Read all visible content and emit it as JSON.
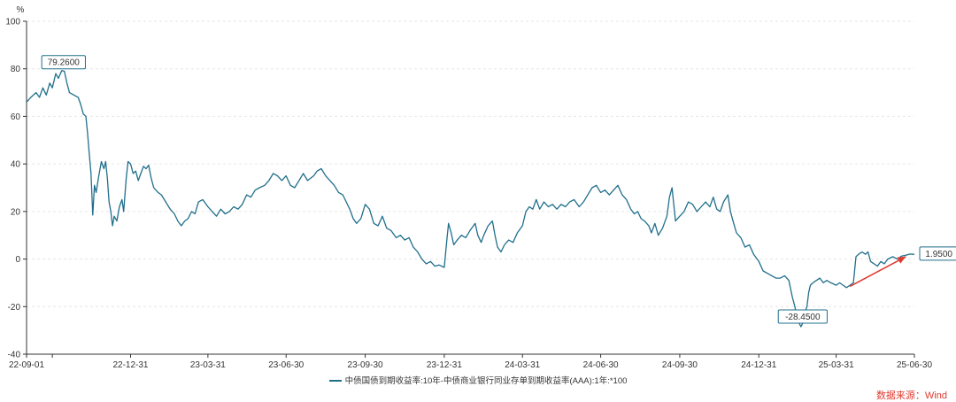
{
  "chart_data": {
    "type": "line",
    "unit": "%",
    "ylim": [
      -40,
      100
    ],
    "yticks": [
      -40,
      -20,
      0,
      20,
      40,
      60,
      80,
      100
    ],
    "x_range": [
      "2022-09-01",
      "2025-06-30"
    ],
    "xtick_labels": [
      {
        "date": "2022-09-01",
        "label": "22-09-01"
      },
      {
        "date": "2022-12-31",
        "label": "22-12-31"
      },
      {
        "date": "2023-03-31",
        "label": "23-03-31"
      },
      {
        "date": "2023-06-30",
        "label": "23-06-30"
      },
      {
        "date": "2023-09-30",
        "label": "23-09-30"
      },
      {
        "date": "2023-12-31",
        "label": "23-12-31"
      },
      {
        "date": "2024-03-31",
        "label": "24-03-31"
      },
      {
        "date": "2024-06-30",
        "label": "24-06-30"
      },
      {
        "date": "2024-09-30",
        "label": "24-09-30"
      },
      {
        "date": "2024-12-31",
        "label": "24-12-31"
      },
      {
        "date": "2025-03-31",
        "label": "25-03-31"
      },
      {
        "date": "2025-06-30",
        "label": "25-06-30"
      }
    ],
    "grid": "horizontal-dashed",
    "legend_position": "bottom-center",
    "series": [
      {
        "name": "中债国债到期收益率:10年-中债商业银行同业存单到期收益率(AAA):1年:*100",
        "color": "#1f6f8b",
        "points": [
          [
            "2022-09-01",
            66
          ],
          [
            "2022-09-06",
            68
          ],
          [
            "2022-09-12",
            70
          ],
          [
            "2022-09-16",
            68
          ],
          [
            "2022-09-20",
            72
          ],
          [
            "2022-09-24",
            69
          ],
          [
            "2022-09-28",
            74
          ],
          [
            "2022-10-01",
            72
          ],
          [
            "2022-10-05",
            78
          ],
          [
            "2022-10-08",
            76
          ],
          [
            "2022-10-12",
            79.26
          ],
          [
            "2022-10-15",
            79
          ],
          [
            "2022-10-18",
            74
          ],
          [
            "2022-10-21",
            70
          ],
          [
            "2022-10-26",
            69
          ],
          [
            "2022-10-31",
            68
          ],
          [
            "2022-11-03",
            65
          ],
          [
            "2022-11-06",
            61
          ],
          [
            "2022-11-09",
            60
          ],
          [
            "2022-11-11",
            53
          ],
          [
            "2022-11-13",
            44
          ],
          [
            "2022-11-15",
            36
          ],
          [
            "2022-11-17",
            18.5
          ],
          [
            "2022-11-19",
            31
          ],
          [
            "2022-11-21",
            28
          ],
          [
            "2022-11-24",
            35
          ],
          [
            "2022-11-27",
            41
          ],
          [
            "2022-11-30",
            38
          ],
          [
            "2022-12-02",
            41
          ],
          [
            "2022-12-04",
            34
          ],
          [
            "2022-12-06",
            24
          ],
          [
            "2022-12-08",
            20
          ],
          [
            "2022-12-10",
            14
          ],
          [
            "2022-12-12",
            18
          ],
          [
            "2022-12-15",
            16
          ],
          [
            "2022-12-18",
            22
          ],
          [
            "2022-12-21",
            25
          ],
          [
            "2022-12-23",
            20
          ],
          [
            "2022-12-26",
            34
          ],
          [
            "2022-12-28",
            41
          ],
          [
            "2022-12-31",
            40
          ],
          [
            "2023-01-03",
            36
          ],
          [
            "2023-01-06",
            37
          ],
          [
            "2023-01-09",
            33
          ],
          [
            "2023-01-12",
            36
          ],
          [
            "2023-01-15",
            39
          ],
          [
            "2023-01-18",
            38
          ],
          [
            "2023-01-21",
            39.5
          ],
          [
            "2023-01-24",
            34
          ],
          [
            "2023-01-27",
            30
          ],
          [
            "2023-02-01",
            28
          ],
          [
            "2023-02-05",
            27
          ],
          [
            "2023-02-10",
            24
          ],
          [
            "2023-02-15",
            21
          ],
          [
            "2023-02-20",
            19
          ],
          [
            "2023-02-24",
            16
          ],
          [
            "2023-02-28",
            14
          ],
          [
            "2023-03-04",
            16
          ],
          [
            "2023-03-08",
            17
          ],
          [
            "2023-03-12",
            20
          ],
          [
            "2023-03-16",
            19
          ],
          [
            "2023-03-20",
            24
          ],
          [
            "2023-03-25",
            25
          ],
          [
            "2023-03-31",
            22
          ],
          [
            "2023-04-05",
            20
          ],
          [
            "2023-04-10",
            18
          ],
          [
            "2023-04-15",
            21
          ],
          [
            "2023-04-20",
            19
          ],
          [
            "2023-04-25",
            20
          ],
          [
            "2023-04-30",
            22
          ],
          [
            "2023-05-05",
            21
          ],
          [
            "2023-05-10",
            23
          ],
          [
            "2023-05-15",
            27
          ],
          [
            "2023-05-20",
            26
          ],
          [
            "2023-05-25",
            29
          ],
          [
            "2023-05-30",
            30
          ],
          [
            "2023-06-05",
            31
          ],
          [
            "2023-06-10",
            33
          ],
          [
            "2023-06-15",
            36
          ],
          [
            "2023-06-20",
            35
          ],
          [
            "2023-06-25",
            33
          ],
          [
            "2023-06-30",
            35
          ],
          [
            "2023-07-05",
            31
          ],
          [
            "2023-07-10",
            30
          ],
          [
            "2023-07-15",
            33
          ],
          [
            "2023-07-20",
            36
          ],
          [
            "2023-07-25",
            33
          ],
          [
            "2023-08-01",
            35
          ],
          [
            "2023-08-05",
            37
          ],
          [
            "2023-08-10",
            38
          ],
          [
            "2023-08-15",
            35
          ],
          [
            "2023-08-20",
            33
          ],
          [
            "2023-08-25",
            31
          ],
          [
            "2023-08-30",
            28
          ],
          [
            "2023-09-04",
            27
          ],
          [
            "2023-09-08",
            24
          ],
          [
            "2023-09-12",
            21
          ],
          [
            "2023-09-16",
            17
          ],
          [
            "2023-09-20",
            15
          ],
          [
            "2023-09-25",
            17
          ],
          [
            "2023-09-30",
            23
          ],
          [
            "2023-10-05",
            21
          ],
          [
            "2023-10-10",
            15
          ],
          [
            "2023-10-15",
            14
          ],
          [
            "2023-10-20",
            18
          ],
          [
            "2023-10-25",
            13
          ],
          [
            "2023-10-30",
            12
          ],
          [
            "2023-11-05",
            9
          ],
          [
            "2023-11-10",
            10
          ],
          [
            "2023-11-15",
            8
          ],
          [
            "2023-11-20",
            9
          ],
          [
            "2023-11-25",
            5
          ],
          [
            "2023-11-30",
            3
          ],
          [
            "2023-12-05",
            0
          ],
          [
            "2023-12-10",
            -2
          ],
          [
            "2023-12-15",
            -1
          ],
          [
            "2023-12-20",
            -3
          ],
          [
            "2023-12-25",
            -2.5
          ],
          [
            "2023-12-31",
            -3.5
          ],
          [
            "2024-01-03",
            8
          ],
          [
            "2024-01-05",
            15
          ],
          [
            "2024-01-08",
            11
          ],
          [
            "2024-01-11",
            6
          ],
          [
            "2024-01-15",
            8
          ],
          [
            "2024-01-20",
            10
          ],
          [
            "2024-01-25",
            9
          ],
          [
            "2024-01-30",
            12
          ],
          [
            "2024-02-05",
            15
          ],
          [
            "2024-02-08",
            10
          ],
          [
            "2024-02-12",
            7
          ],
          [
            "2024-02-15",
            10
          ],
          [
            "2024-02-20",
            14
          ],
          [
            "2024-02-25",
            16
          ],
          [
            "2024-02-28",
            10
          ],
          [
            "2024-03-02",
            5
          ],
          [
            "2024-03-06",
            3
          ],
          [
            "2024-03-10",
            6
          ],
          [
            "2024-03-15",
            8
          ],
          [
            "2024-03-20",
            7
          ],
          [
            "2024-03-25",
            11
          ],
          [
            "2024-03-31",
            14
          ],
          [
            "2024-04-04",
            20
          ],
          [
            "2024-04-08",
            22
          ],
          [
            "2024-04-12",
            21
          ],
          [
            "2024-04-16",
            25
          ],
          [
            "2024-04-20",
            21
          ],
          [
            "2024-04-25",
            24
          ],
          [
            "2024-04-30",
            22
          ],
          [
            "2024-05-05",
            23
          ],
          [
            "2024-05-10",
            21
          ],
          [
            "2024-05-15",
            23
          ],
          [
            "2024-05-20",
            22
          ],
          [
            "2024-05-25",
            24
          ],
          [
            "2024-05-30",
            25
          ],
          [
            "2024-06-05",
            22
          ],
          [
            "2024-06-10",
            24
          ],
          [
            "2024-06-15",
            27
          ],
          [
            "2024-06-20",
            30
          ],
          [
            "2024-06-25",
            31
          ],
          [
            "2024-06-30",
            28
          ],
          [
            "2024-07-05",
            29
          ],
          [
            "2024-07-10",
            27
          ],
          [
            "2024-07-15",
            29
          ],
          [
            "2024-07-20",
            31
          ],
          [
            "2024-07-25",
            27
          ],
          [
            "2024-07-30",
            25
          ],
          [
            "2024-08-04",
            21
          ],
          [
            "2024-08-08",
            19
          ],
          [
            "2024-08-12",
            20
          ],
          [
            "2024-08-16",
            17
          ],
          [
            "2024-08-20",
            16
          ],
          [
            "2024-08-25",
            14
          ],
          [
            "2024-08-28",
            11
          ],
          [
            "2024-09-01",
            15
          ],
          [
            "2024-09-05",
            10
          ],
          [
            "2024-09-10",
            13
          ],
          [
            "2024-09-15",
            18
          ],
          [
            "2024-09-18",
            26
          ],
          [
            "2024-09-21",
            30
          ],
          [
            "2024-09-25",
            16
          ],
          [
            "2024-09-30",
            18
          ],
          [
            "2024-10-05",
            20
          ],
          [
            "2024-10-10",
            24
          ],
          [
            "2024-10-15",
            23
          ],
          [
            "2024-10-20",
            20
          ],
          [
            "2024-10-25",
            22
          ],
          [
            "2024-10-30",
            24
          ],
          [
            "2024-11-04",
            22
          ],
          [
            "2024-11-08",
            26
          ],
          [
            "2024-11-12",
            21
          ],
          [
            "2024-11-16",
            20
          ],
          [
            "2024-11-20",
            24
          ],
          [
            "2024-11-25",
            27
          ],
          [
            "2024-11-28",
            20
          ],
          [
            "2024-12-01",
            16
          ],
          [
            "2024-12-05",
            11
          ],
          [
            "2024-12-10",
            9
          ],
          [
            "2024-12-15",
            5
          ],
          [
            "2024-12-20",
            6
          ],
          [
            "2024-12-25",
            2
          ],
          [
            "2024-12-31",
            -1
          ],
          [
            "2025-01-05",
            -5
          ],
          [
            "2025-01-10",
            -6
          ],
          [
            "2025-01-15",
            -7
          ],
          [
            "2025-01-20",
            -8
          ],
          [
            "2025-01-25",
            -8
          ],
          [
            "2025-01-30",
            -7
          ],
          [
            "2025-02-04",
            -9
          ],
          [
            "2025-02-08",
            -16
          ],
          [
            "2025-02-11",
            -20
          ],
          [
            "2025-02-14",
            -26
          ],
          [
            "2025-02-16",
            -27
          ],
          [
            "2025-02-18",
            -28.45
          ],
          [
            "2025-02-20",
            -27
          ],
          [
            "2025-02-22",
            -23
          ],
          [
            "2025-02-25",
            -20
          ],
          [
            "2025-02-27",
            -14
          ],
          [
            "2025-03-01",
            -11
          ],
          [
            "2025-03-04",
            -10
          ],
          [
            "2025-03-08",
            -9
          ],
          [
            "2025-03-12",
            -8
          ],
          [
            "2025-03-16",
            -10
          ],
          [
            "2025-03-20",
            -9
          ],
          [
            "2025-03-25",
            -10
          ],
          [
            "2025-03-31",
            -11
          ],
          [
            "2025-04-04",
            -10
          ],
          [
            "2025-04-08",
            -11
          ],
          [
            "2025-04-12",
            -12
          ],
          [
            "2025-04-16",
            -11
          ],
          [
            "2025-04-20",
            -10
          ],
          [
            "2025-04-23",
            1
          ],
          [
            "2025-04-26",
            2
          ],
          [
            "2025-04-30",
            3
          ],
          [
            "2025-05-04",
            2
          ],
          [
            "2025-05-07",
            3
          ],
          [
            "2025-05-10",
            -1
          ],
          [
            "2025-05-14",
            -2
          ],
          [
            "2025-05-18",
            -3
          ],
          [
            "2025-05-22",
            -1
          ],
          [
            "2025-05-26",
            -2
          ],
          [
            "2025-05-30",
            0
          ],
          [
            "2025-06-05",
            1
          ],
          [
            "2025-06-10",
            0
          ],
          [
            "2025-06-15",
            1.2
          ],
          [
            "2025-06-20",
            1.6
          ],
          [
            "2025-06-25",
            2.1
          ],
          [
            "2025-06-30",
            1.95
          ]
        ]
      }
    ],
    "annotations": [
      {
        "date": "2022-10-12",
        "value": 79.26,
        "label": "79.2600",
        "placement": "above"
      },
      {
        "date": "2025-02-18",
        "value": -28.45,
        "label": "-28.4500",
        "placement": "above-below"
      },
      {
        "date": "2025-06-30",
        "value": 1.95,
        "label": "1.9500",
        "placement": "right"
      }
    ],
    "trend_arrow": {
      "color": "#e03a2f",
      "from": [
        "2025-04-16",
        -11.5
      ],
      "to": [
        "2025-06-20",
        1.0
      ]
    }
  },
  "legend_label": "中债国债到期收益率:10年-中债商业银行同业存单到期收益率(AAA):1年:*100",
  "source_label": "数据来源：Wind"
}
